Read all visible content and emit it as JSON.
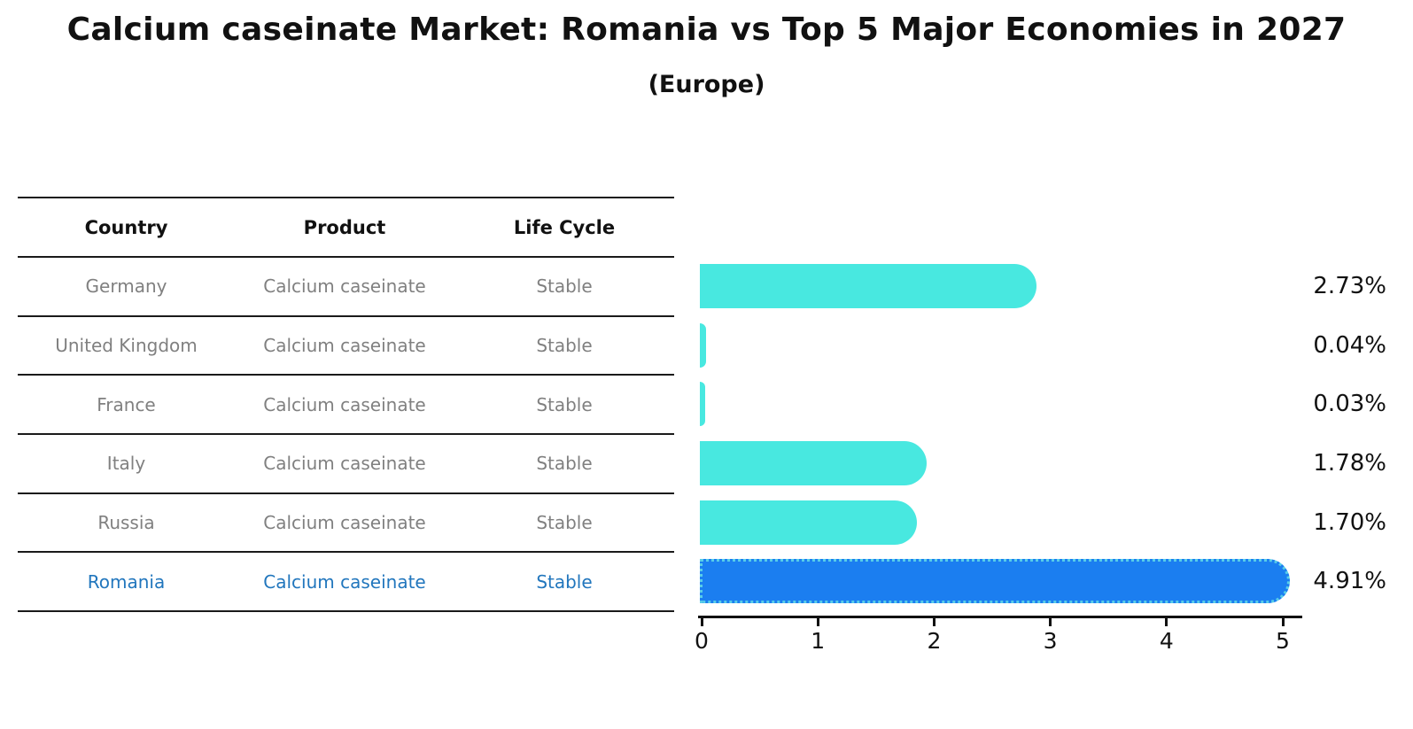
{
  "title": "Calcium caseinate Market: Romania vs Top 5 Major Economies in 2027",
  "subtitle": "(Europe)",
  "table": {
    "headers": [
      "Country",
      "Product",
      "Life Cycle"
    ]
  },
  "chart_data": {
    "type": "bar",
    "orientation": "horizontal",
    "title": "Calcium caseinate Market: Romania vs Top 5 Major Economies in 2027 (Europe)",
    "x_tick_labels": [
      "0",
      "1",
      "2",
      "3",
      "4",
      "5"
    ],
    "xlim": [
      0,
      5.2
    ],
    "grid": false,
    "value_suffix": "%",
    "rows": [
      {
        "country": "Germany",
        "product": "Calcium caseinate",
        "life_cycle": "Stable",
        "value": 2.73,
        "value_label": "2.73%",
        "highlight": false
      },
      {
        "country": "United Kingdom",
        "product": "Calcium caseinate",
        "life_cycle": "Stable",
        "value": 0.04,
        "value_label": "0.04%",
        "highlight": false
      },
      {
        "country": "France",
        "product": "Calcium caseinate",
        "life_cycle": "Stable",
        "value": 0.03,
        "value_label": "0.03%",
        "highlight": false
      },
      {
        "country": "Italy",
        "product": "Calcium caseinate",
        "life_cycle": "Stable",
        "value": 1.78,
        "value_label": "1.78%",
        "highlight": false
      },
      {
        "country": "Russia",
        "product": "Calcium caseinate",
        "life_cycle": "Stable",
        "value": 1.7,
        "value_label": "1.70%",
        "highlight": false
      },
      {
        "country": "Romania",
        "product": "Calcium caseinate",
        "life_cycle": "Stable",
        "value": 4.91,
        "value_label": "4.91%",
        "highlight": true
      }
    ],
    "colors": {
      "bar": "#48e8e0",
      "highlight_bar": "#1b7ef0",
      "highlight_bar_edge": "#58cde8",
      "highlight_text": "#2176bd",
      "row_text": "#808080",
      "axis": "#111111"
    }
  }
}
